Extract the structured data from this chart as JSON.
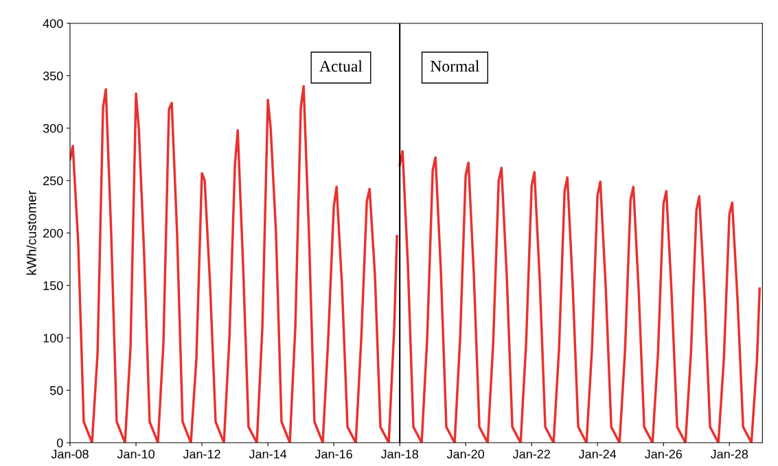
{
  "chart_data": {
    "type": "line",
    "ylabel": "kWh/customer",
    "series": [
      {
        "color": "#e8312f",
        "x": [
          "2008-01",
          "2008-02",
          "2008-04",
          "2008-06",
          "2008-09",
          "2008-11",
          "2009-01",
          "2009-02",
          "2009-04",
          "2009-06",
          "2009-09",
          "2009-11",
          "2010-01",
          "2010-02",
          "2010-04",
          "2010-06",
          "2010-09",
          "2010-11",
          "2011-01",
          "2011-02",
          "2011-04",
          "2011-06",
          "2011-09",
          "2011-11",
          "2012-01",
          "2012-02",
          "2012-04",
          "2012-06",
          "2012-09",
          "2012-11",
          "2013-01",
          "2013-02",
          "2013-04",
          "2013-06",
          "2013-09",
          "2013-11",
          "2014-01",
          "2014-02",
          "2014-04",
          "2014-06",
          "2014-09",
          "2014-11",
          "2015-01",
          "2015-02",
          "2015-04",
          "2015-06",
          "2015-09",
          "2015-11",
          "2016-01",
          "2016-02",
          "2016-04",
          "2016-06",
          "2016-09",
          "2016-11",
          "2017-01",
          "2017-02",
          "2017-04",
          "2017-06",
          "2017-09",
          "2017-11",
          "2017-12"
        ],
        "values": [
          270,
          283,
          190,
          20,
          0,
          85,
          320,
          337,
          200,
          20,
          0,
          90,
          333,
          300,
          180,
          20,
          0,
          95,
          318,
          324,
          200,
          20,
          0,
          80,
          257,
          250,
          150,
          20,
          0,
          100,
          265,
          298,
          170,
          15,
          0,
          110,
          327,
          300,
          200,
          20,
          0,
          110,
          320,
          340,
          200,
          20,
          0,
          100,
          225,
          244,
          150,
          15,
          0,
          100,
          230,
          242,
          160,
          15,
          0,
          110,
          197
        ]
      },
      {
        "color": "#e8312f",
        "x": [
          "2018-01",
          "2018-02",
          "2018-04",
          "2018-06",
          "2018-09",
          "2018-11",
          "2019-01",
          "2019-02",
          "2019-04",
          "2019-06",
          "2019-09",
          "2019-11",
          "2020-01",
          "2020-02",
          "2020-04",
          "2020-06",
          "2020-09",
          "2020-11",
          "2021-01",
          "2021-02",
          "2021-04",
          "2021-06",
          "2021-09",
          "2021-11",
          "2022-01",
          "2022-02",
          "2022-04",
          "2022-06",
          "2022-09",
          "2022-11",
          "2023-01",
          "2023-02",
          "2023-04",
          "2023-06",
          "2023-09",
          "2023-11",
          "2024-01",
          "2024-02",
          "2024-04",
          "2024-06",
          "2024-09",
          "2024-11",
          "2025-01",
          "2025-02",
          "2025-04",
          "2025-06",
          "2025-09",
          "2025-11",
          "2026-01",
          "2026-02",
          "2026-04",
          "2026-06",
          "2026-09",
          "2026-11",
          "2027-01",
          "2027-02",
          "2027-04",
          "2027-06",
          "2027-09",
          "2027-11",
          "2028-01",
          "2028-02",
          "2028-04",
          "2028-06",
          "2028-09",
          "2028-11",
          "2028-12"
        ],
        "values": [
          265,
          278,
          170,
          15,
          0,
          100,
          260,
          272,
          165,
          15,
          0,
          100,
          255,
          267,
          160,
          15,
          0,
          95,
          250,
          262,
          158,
          15,
          0,
          95,
          245,
          258,
          155,
          15,
          0,
          90,
          240,
          253,
          150,
          15,
          0,
          90,
          236,
          249,
          148,
          15,
          0,
          88,
          232,
          244,
          145,
          15,
          0,
          85,
          228,
          240,
          142,
          15,
          0,
          85,
          222,
          235,
          140,
          15,
          0,
          80,
          218,
          229,
          135,
          15,
          0,
          78,
          147
        ]
      }
    ],
    "xlim": [
      "2008-01",
      "2029-01"
    ],
    "xticks": [
      {
        "value": "2008-01",
        "label": "Jan-08"
      },
      {
        "value": "2010-01",
        "label": "Jan-10"
      },
      {
        "value": "2012-01",
        "label": "Jan-12"
      },
      {
        "value": "2014-01",
        "label": "Jan-14"
      },
      {
        "value": "2016-01",
        "label": "Jan-16"
      },
      {
        "value": "2018-01",
        "label": "Jan-18"
      },
      {
        "value": "2020-01",
        "label": "Jan-20"
      },
      {
        "value": "2022-01",
        "label": "Jan-22"
      },
      {
        "value": "2024-01",
        "label": "Jan-24"
      },
      {
        "value": "2026-01",
        "label": "Jan-26"
      },
      {
        "value": "2028-01",
        "label": "Jan-28"
      }
    ],
    "ylim": [
      0,
      400
    ],
    "yticks": [
      0,
      50,
      100,
      150,
      200,
      250,
      300,
      350,
      400
    ],
    "grid": false,
    "marker": "none",
    "line_style": "solid",
    "ref_lines": [
      {
        "axis": "x",
        "value": "2018-01",
        "color": "#000000"
      }
    ],
    "annotations": [
      "Actual",
      "Normal"
    ]
  }
}
